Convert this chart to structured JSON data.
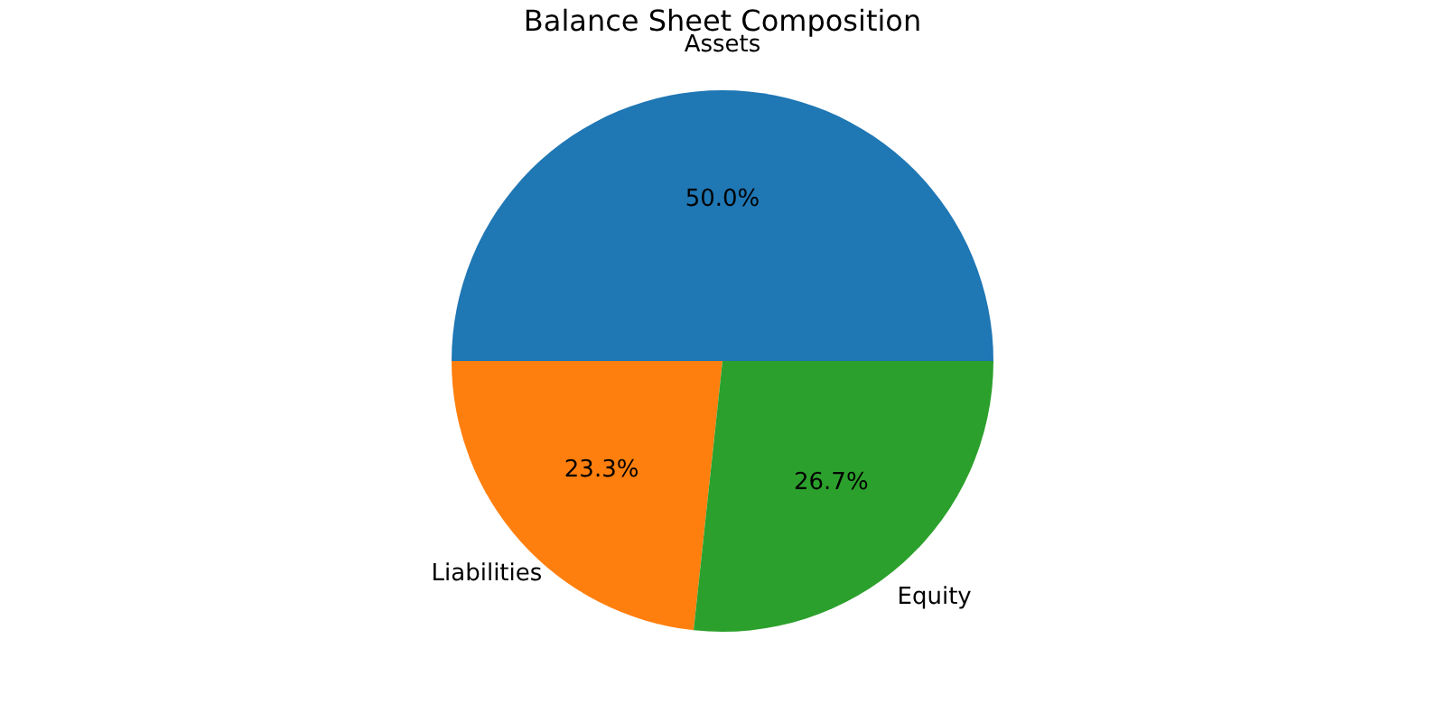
{
  "chart_data": {
    "type": "pie",
    "title": "Balance Sheet Composition",
    "categories": [
      "Assets",
      "Liabilities",
      "Equity"
    ],
    "values": [
      50.0,
      23.3,
      26.7
    ],
    "colors": [
      "#1f77b4",
      "#ff7f0e",
      "#2ca02c"
    ],
    "value_labels": [
      "50.0%",
      "23.3%",
      "26.7%"
    ],
    "legend": false
  }
}
